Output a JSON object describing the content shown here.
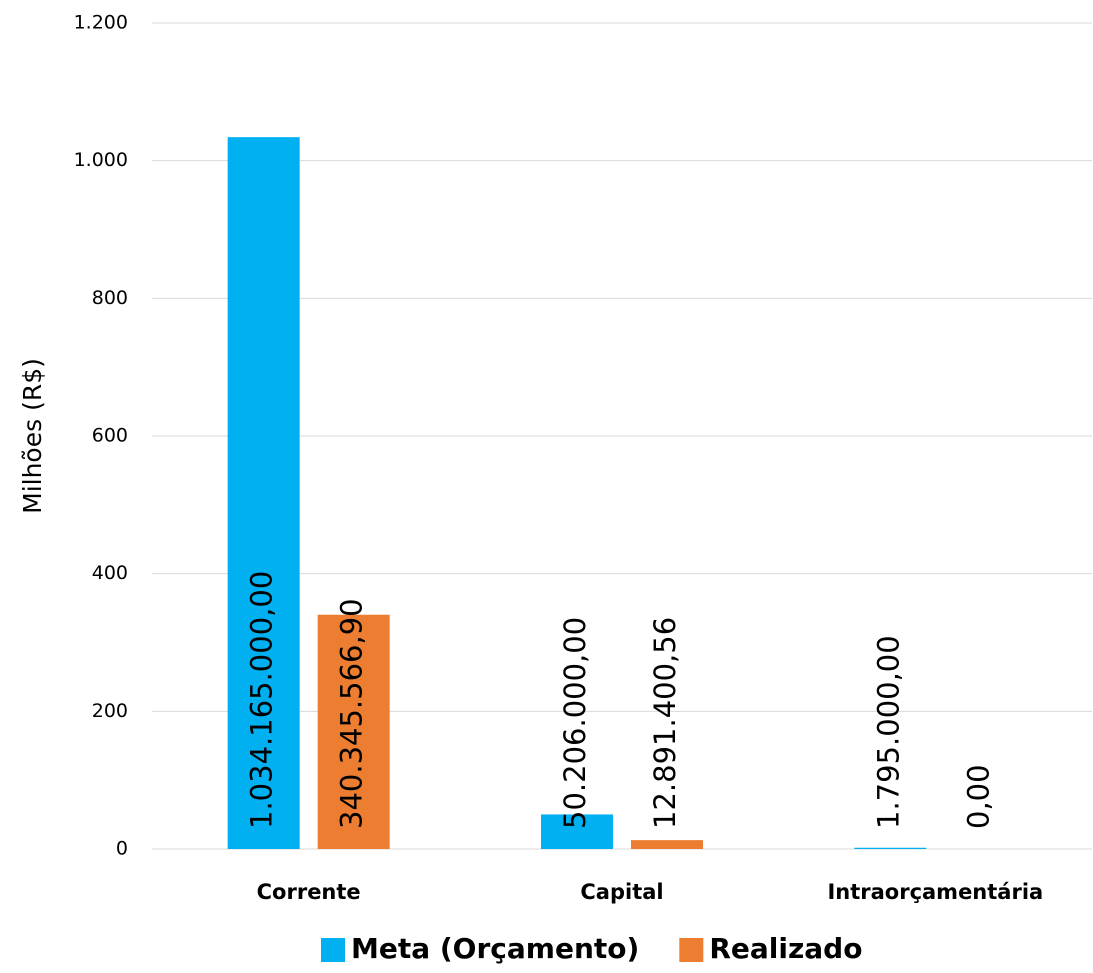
{
  "chart_data": {
    "type": "bar",
    "y_label": "Milhões (R$)",
    "categories": [
      "Corrente",
      "Capital",
      "Intraorçamentária"
    ],
    "series": [
      {
        "name": "Meta (Orçamento)",
        "color": "#00b0f0",
        "values": [
          1034.165,
          50.206,
          1.795
        ],
        "value_labels": [
          "1.034.165.000,00",
          "50.206.000,00",
          "1.795.000,00"
        ]
      },
      {
        "name": "Realizado",
        "color": "#ed7d31",
        "values": [
          340.3455669,
          12.89140056,
          0
        ],
        "value_labels": [
          "340.345.566,90",
          "12.891.400,56",
          "0,00"
        ]
      }
    ],
    "ylim": [
      0,
      1200
    ],
    "yticks": [
      0,
      200,
      400,
      600,
      800,
      {
        "value": 1000,
        "label": "1.000"
      },
      {
        "value": 1200,
        "label": "1.200"
      }
    ],
    "grid": true,
    "legend": "bottom"
  }
}
